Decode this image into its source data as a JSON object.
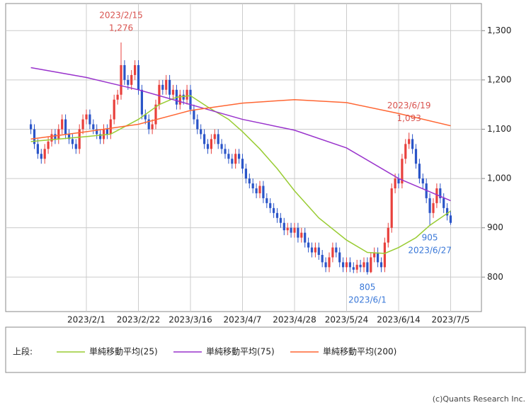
{
  "chart_data": {
    "type": "candlestick",
    "categories": [
      "2023/1/10",
      "2023/1/11",
      "2023/1/12",
      "2023/1/13",
      "2023/1/16",
      "2023/1/17",
      "2023/1/18",
      "2023/1/19",
      "2023/1/20",
      "2023/1/23",
      "2023/1/24",
      "2023/1/25",
      "2023/1/26",
      "2023/1/27",
      "2023/1/30",
      "2023/1/31",
      "2023/2/1",
      "2023/2/2",
      "2023/2/3",
      "2023/2/6",
      "2023/2/7",
      "2023/2/8",
      "2023/2/9",
      "2023/2/10",
      "2023/2/13",
      "2023/2/14",
      "2023/2/15",
      "2023/2/16",
      "2023/2/17",
      "2023/2/20",
      "2023/2/21",
      "2023/2/22",
      "2023/2/24",
      "2023/2/27",
      "2023/2/28",
      "2023/3/1",
      "2023/3/2",
      "2023/3/3",
      "2023/3/6",
      "2023/3/7",
      "2023/3/8",
      "2023/3/9",
      "2023/3/10",
      "2023/3/13",
      "2023/3/14",
      "2023/3/15",
      "2023/3/16",
      "2023/3/17",
      "2023/3/20",
      "2023/3/22",
      "2023/3/23",
      "2023/3/24",
      "2023/3/27",
      "2023/3/28",
      "2023/3/29",
      "2023/3/30",
      "2023/3/31",
      "2023/4/3",
      "2023/4/4",
      "2023/4/5",
      "2023/4/6",
      "2023/4/7",
      "2023/4/10",
      "2023/4/11",
      "2023/4/12",
      "2023/4/13",
      "2023/4/14",
      "2023/4/17",
      "2023/4/18",
      "2023/4/19",
      "2023/4/20",
      "2023/4/21",
      "2023/4/24",
      "2023/4/25",
      "2023/4/26",
      "2023/4/27",
      "2023/4/28",
      "2023/5/1",
      "2023/5/2",
      "2023/5/8",
      "2023/5/9",
      "2023/5/10",
      "2023/5/11",
      "2023/5/12",
      "2023/5/15",
      "2023/5/16",
      "2023/5/17",
      "2023/5/18",
      "2023/5/19",
      "2023/5/22",
      "2023/5/23",
      "2023/5/24",
      "2023/5/25",
      "2023/5/26",
      "2023/5/29",
      "2023/5/30",
      "2023/5/31",
      "2023/6/1",
      "2023/6/2",
      "2023/6/5",
      "2023/6/6",
      "2023/6/7",
      "2023/6/8",
      "2023/6/9",
      "2023/6/12",
      "2023/6/13",
      "2023/6/14",
      "2023/6/15",
      "2023/6/16",
      "2023/6/19",
      "2023/6/20",
      "2023/6/21",
      "2023/6/22",
      "2023/6/23",
      "2023/6/26",
      "2023/6/27",
      "2023/6/28",
      "2023/6/29",
      "2023/6/30",
      "2023/7/3",
      "2023/7/4",
      "2023/7/5"
    ],
    "ohlc": [
      [
        1110,
        1120,
        1090,
        1100
      ],
      [
        1100,
        1110,
        1060,
        1070
      ],
      [
        1070,
        1080,
        1040,
        1050
      ],
      [
        1050,
        1060,
        1030,
        1040
      ],
      [
        1040,
        1070,
        1030,
        1060
      ],
      [
        1060,
        1085,
        1050,
        1075
      ],
      [
        1075,
        1100,
        1065,
        1090
      ],
      [
        1090,
        1100,
        1070,
        1080
      ],
      [
        1080,
        1110,
        1070,
        1100
      ],
      [
        1100,
        1130,
        1090,
        1120
      ],
      [
        1120,
        1130,
        1080,
        1090
      ],
      [
        1090,
        1100,
        1070,
        1080
      ],
      [
        1080,
        1090,
        1060,
        1070
      ],
      [
        1070,
        1080,
        1050,
        1060
      ],
      [
        1060,
        1110,
        1050,
        1100
      ],
      [
        1100,
        1130,
        1090,
        1120
      ],
      [
        1120,
        1140,
        1110,
        1130
      ],
      [
        1130,
        1140,
        1100,
        1110
      ],
      [
        1110,
        1120,
        1090,
        1100
      ],
      [
        1100,
        1110,
        1080,
        1090
      ],
      [
        1090,
        1100,
        1070,
        1080
      ],
      [
        1080,
        1110,
        1070,
        1100
      ],
      [
        1100,
        1110,
        1080,
        1090
      ],
      [
        1090,
        1130,
        1080,
        1120
      ],
      [
        1120,
        1170,
        1110,
        1160
      ],
      [
        1160,
        1180,
        1150,
        1170
      ],
      [
        1170,
        1276,
        1160,
        1230
      ],
      [
        1230,
        1240,
        1190,
        1200
      ],
      [
        1200,
        1210,
        1180,
        1190
      ],
      [
        1190,
        1220,
        1180,
        1210
      ],
      [
        1210,
        1240,
        1200,
        1230
      ],
      [
        1230,
        1240,
        1170,
        1180
      ],
      [
        1180,
        1190,
        1120,
        1130
      ],
      [
        1130,
        1140,
        1110,
        1120
      ],
      [
        1120,
        1130,
        1090,
        1100
      ],
      [
        1100,
        1120,
        1090,
        1110
      ],
      [
        1110,
        1160,
        1100,
        1150
      ],
      [
        1150,
        1200,
        1140,
        1190
      ],
      [
        1190,
        1200,
        1170,
        1180
      ],
      [
        1180,
        1210,
        1170,
        1200
      ],
      [
        1200,
        1210,
        1160,
        1170
      ],
      [
        1170,
        1190,
        1160,
        1180
      ],
      [
        1180,
        1190,
        1140,
        1150
      ],
      [
        1150,
        1180,
        1140,
        1170
      ],
      [
        1170,
        1180,
        1150,
        1160
      ],
      [
        1160,
        1190,
        1150,
        1180
      ],
      [
        1180,
        1190,
        1130,
        1140
      ],
      [
        1140,
        1150,
        1110,
        1120
      ],
      [
        1120,
        1130,
        1090,
        1100
      ],
      [
        1100,
        1110,
        1080,
        1090
      ],
      [
        1090,
        1100,
        1060,
        1070
      ],
      [
        1070,
        1080,
        1050,
        1060
      ],
      [
        1060,
        1090,
        1050,
        1080
      ],
      [
        1080,
        1100,
        1070,
        1090
      ],
      [
        1090,
        1100,
        1060,
        1070
      ],
      [
        1070,
        1080,
        1050,
        1060
      ],
      [
        1060,
        1070,
        1040,
        1050
      ],
      [
        1050,
        1060,
        1030,
        1040
      ],
      [
        1040,
        1050,
        1020,
        1030
      ],
      [
        1030,
        1060,
        1020,
        1050
      ],
      [
        1050,
        1060,
        1030,
        1040
      ],
      [
        1040,
        1050,
        1010,
        1020
      ],
      [
        1020,
        1030,
        990,
        1000
      ],
      [
        1000,
        1010,
        980,
        990
      ],
      [
        990,
        1000,
        970,
        980
      ],
      [
        980,
        990,
        960,
        970
      ],
      [
        970,
        995,
        960,
        985
      ],
      [
        985,
        995,
        950,
        960
      ],
      [
        960,
        970,
        940,
        950
      ],
      [
        950,
        960,
        930,
        940
      ],
      [
        940,
        950,
        920,
        930
      ],
      [
        930,
        940,
        910,
        920
      ],
      [
        920,
        930,
        900,
        910
      ],
      [
        910,
        920,
        885,
        895
      ],
      [
        895,
        910,
        885,
        900
      ],
      [
        900,
        910,
        880,
        890
      ],
      [
        890,
        910,
        880,
        900
      ],
      [
        900,
        910,
        870,
        880
      ],
      [
        880,
        900,
        870,
        890
      ],
      [
        890,
        900,
        860,
        870
      ],
      [
        870,
        880,
        850,
        860
      ],
      [
        860,
        870,
        840,
        850
      ],
      [
        850,
        870,
        840,
        860
      ],
      [
        860,
        870,
        835,
        845
      ],
      [
        845,
        855,
        820,
        830
      ],
      [
        830,
        840,
        810,
        820
      ],
      [
        820,
        850,
        810,
        840
      ],
      [
        840,
        870,
        830,
        860
      ],
      [
        860,
        870,
        840,
        850
      ],
      [
        850,
        860,
        820,
        830
      ],
      [
        830,
        840,
        810,
        820
      ],
      [
        820,
        840,
        810,
        830
      ],
      [
        830,
        840,
        810,
        820
      ],
      [
        820,
        830,
        808,
        815
      ],
      [
        815,
        835,
        808,
        825
      ],
      [
        825,
        835,
        810,
        820
      ],
      [
        820,
        840,
        810,
        830
      ],
      [
        830,
        840,
        805,
        810
      ],
      [
        810,
        850,
        808,
        840
      ],
      [
        840,
        860,
        830,
        850
      ],
      [
        850,
        860,
        820,
        830
      ],
      [
        830,
        840,
        810,
        820
      ],
      [
        820,
        880,
        810,
        870
      ],
      [
        870,
        910,
        860,
        900
      ],
      [
        900,
        990,
        890,
        980
      ],
      [
        980,
        1010,
        970,
        1000
      ],
      [
        1000,
        1010,
        980,
        990
      ],
      [
        990,
        1050,
        980,
        1040
      ],
      [
        1040,
        1080,
        1030,
        1070
      ],
      [
        1070,
        1093,
        1060,
        1080
      ],
      [
        1080,
        1090,
        1050,
        1060
      ],
      [
        1060,
        1070,
        1020,
        1030
      ],
      [
        1030,
        1040,
        990,
        1000
      ],
      [
        1000,
        1010,
        980,
        990
      ],
      [
        990,
        1000,
        950,
        960
      ],
      [
        960,
        970,
        905,
        930
      ],
      [
        930,
        960,
        920,
        950
      ],
      [
        950,
        990,
        940,
        980
      ],
      [
        980,
        990,
        950,
        960
      ],
      [
        960,
        970,
        930,
        940
      ],
      [
        940,
        950,
        915,
        925
      ],
      [
        925,
        935,
        906,
        910
      ]
    ],
    "up_color": "#e8403c",
    "down_color": "#2b55c8",
    "series": [
      {
        "name": "単純移動平均(25)",
        "color": "#99cc33",
        "x": [
          "2023/1/10",
          "2023/1/20",
          "2023/2/1",
          "2023/2/10",
          "2023/2/22",
          "2023/3/3",
          "2023/3/10",
          "2023/3/16",
          "2023/3/24",
          "2023/4/3",
          "2023/4/7",
          "2023/4/14",
          "2023/4/21",
          "2023/4/28",
          "2023/5/12",
          "2023/5/24",
          "2023/6/1",
          "2023/6/8",
          "2023/6/14",
          "2023/6/21",
          "2023/6/27",
          "2023/7/5"
        ],
        "values": [
          1075,
          1080,
          1085,
          1090,
          1120,
          1150,
          1165,
          1168,
          1145,
          1120,
          1095,
          1060,
          1020,
          975,
          920,
          875,
          850,
          848,
          860,
          880,
          905,
          934
        ]
      },
      {
        "name": "単純移動平均(75)",
        "color": "#9933cc",
        "x": [
          "2023/1/10",
          "2023/2/1",
          "2023/2/22",
          "2023/3/16",
          "2023/4/7",
          "2023/4/28",
          "2023/5/24",
          "2023/6/14",
          "2023/7/5"
        ],
        "values": [
          1225,
          1205,
          1180,
          1150,
          1120,
          1098,
          1062,
          1000,
          955
        ]
      },
      {
        "name": "単純移動平均(200)",
        "color": "#ff6633",
        "x": [
          "2023/1/10",
          "2023/2/1",
          "2023/2/22",
          "2023/3/16",
          "2023/4/7",
          "2023/4/28",
          "2023/5/24",
          "2023/6/14",
          "2023/7/5"
        ],
        "values": [
          1080,
          1095,
          1110,
          1138,
          1153,
          1160,
          1154,
          1132,
          1107
        ]
      }
    ],
    "annotations": [
      {
        "date": "2023/2/15",
        "label": "1,276",
        "at": "high",
        "color": "#d9534f"
      },
      {
        "date": "2023/6/19",
        "label": "1,093",
        "at": "high",
        "color": "#d9534f"
      },
      {
        "date": "2023/6/1",
        "label": "805",
        "at": "low",
        "color": "#3a78d8"
      },
      {
        "date": "2023/6/27",
        "label": "905",
        "at": "low",
        "color": "#3a78d8"
      }
    ],
    "ylim": [
      730,
      1355
    ],
    "yticks": [
      {
        "value": 800,
        "label": "800"
      },
      {
        "value": 900,
        "label": "900"
      },
      {
        "value": 1000,
        "label": "1,000"
      },
      {
        "value": 1100,
        "label": "1,100"
      },
      {
        "value": 1200,
        "label": "1,200"
      },
      {
        "value": 1300,
        "label": "1,300"
      }
    ],
    "xticks": [
      "2023/2/1",
      "2023/2/22",
      "2023/3/16",
      "2023/4/7",
      "2023/4/28",
      "2023/5/24",
      "2023/6/14",
      "2023/7/5"
    ],
    "grid": true,
    "legend_prefix": "上段:",
    "copyright": "(c)Quants Research Inc."
  }
}
